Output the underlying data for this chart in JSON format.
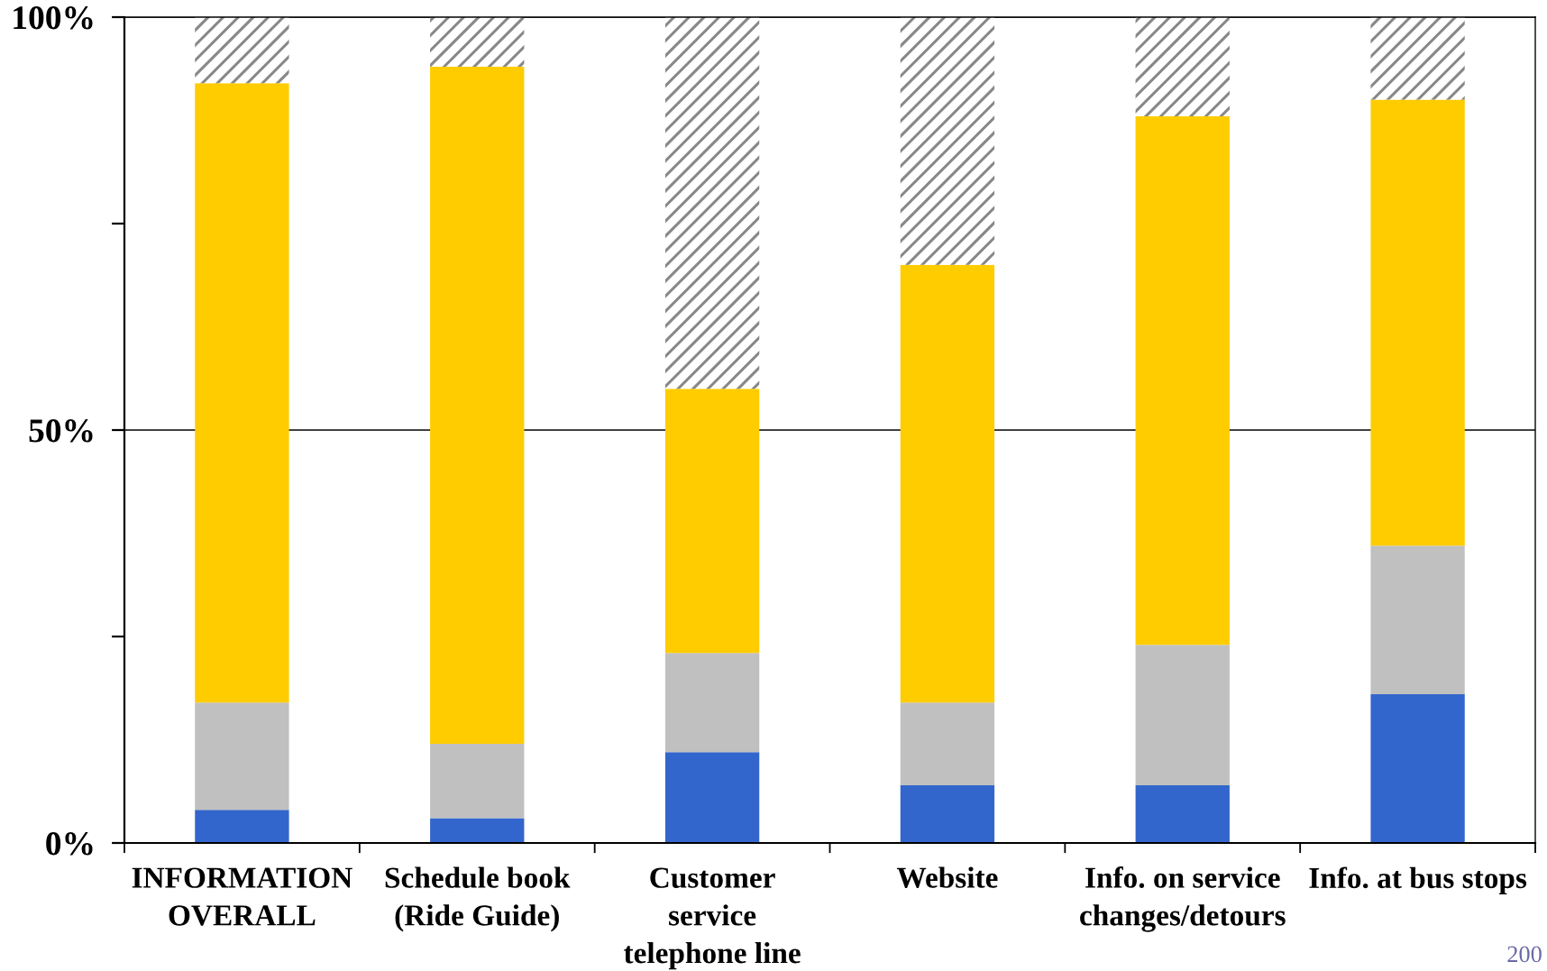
{
  "chart_data": {
    "type": "bar",
    "stacked": true,
    "categories": [
      "INFORMATION\nOVERALL",
      "Schedule book\n(Ride Guide)",
      "Customer\nservice\ntelephone line",
      "Website",
      "Info. on service\nchanges/detours",
      "Info. at bus stops"
    ],
    "series": [
      {
        "color": "#3366cc",
        "values": [
          4,
          3,
          11,
          7,
          7,
          18
        ]
      },
      {
        "color": "#c0c0c0",
        "values": [
          13,
          9,
          12,
          10,
          17,
          18
        ]
      },
      {
        "color": "#ffcc00",
        "values": [
          75,
          82,
          32,
          53,
          64,
          54
        ]
      },
      {
        "color": "#888888",
        "values": [
          8,
          6,
          45,
          30,
          12,
          10
        ]
      }
    ],
    "ylim": [
      0,
      100
    ],
    "yticks": [
      {
        "value": 0,
        "label": "0%"
      },
      {
        "value": 25,
        "label": null
      },
      {
        "value": 50,
        "label": "50%"
      },
      {
        "value": 75,
        "label": null
      },
      {
        "value": 100,
        "label": "100%"
      }
    ],
    "grid": "y",
    "annotations": [
      "200"
    ]
  }
}
